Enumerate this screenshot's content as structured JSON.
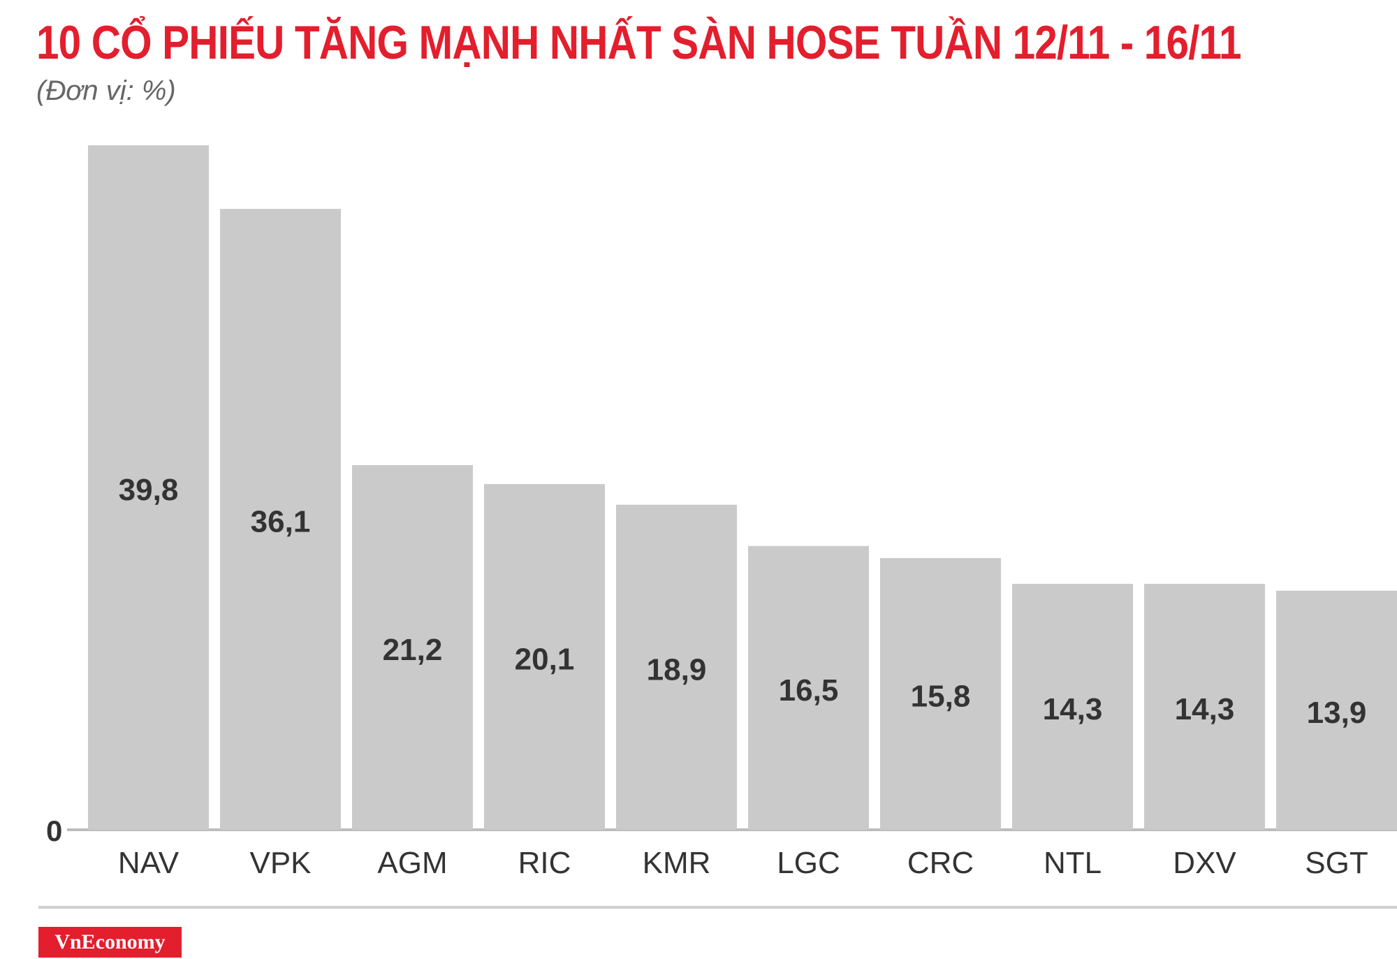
{
  "header": {
    "title": "10 CỔ PHIẾU TĂNG MẠNH NHẤT SÀN HOSE TUẦN 12/11 - 16/11",
    "subtitle": "(Đơn vị: %)"
  },
  "chart_data": {
    "type": "bar",
    "title": "10 CỔ PHIẾU TĂNG MẠNH NHẤT SÀN HOSE TUẦN 12/11 - 16/11",
    "subtitle": "(Đơn vị: %)",
    "categories": [
      "NAV",
      "VPK",
      "AGM",
      "RIC",
      "KMR",
      "LGC",
      "CRC",
      "NTL",
      "DXV",
      "SGT"
    ],
    "values": [
      39.8,
      36.1,
      21.2,
      20.1,
      18.9,
      16.5,
      15.8,
      14.3,
      14.3,
      13.9
    ],
    "value_labels": [
      "39,8",
      "36,1",
      "21,2",
      "20,1",
      "18,9",
      "16,5",
      "15,8",
      "14,3",
      "14,3",
      "13,9"
    ],
    "y_tick_labels": [
      "0"
    ],
    "ylim": [
      0,
      39.8
    ],
    "bar_color": "#cbcacb",
    "grid": false,
    "legend": "none"
  },
  "footer": {
    "logo_text": "VnEconomy",
    "brand_color": "#e31e2d"
  }
}
